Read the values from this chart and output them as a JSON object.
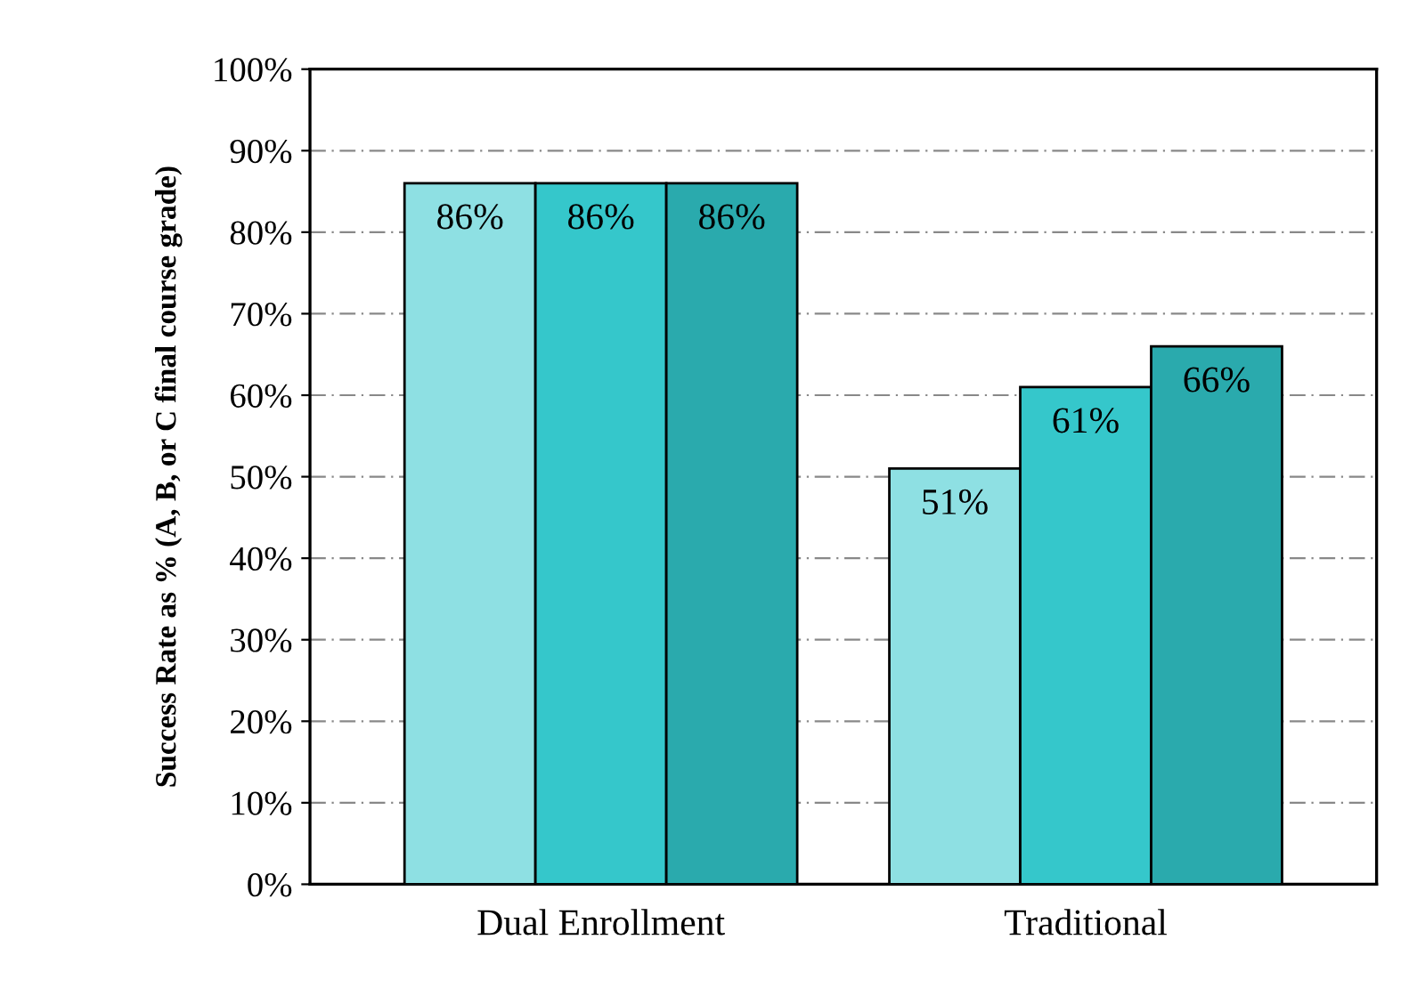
{
  "chart_data": {
    "type": "bar",
    "ylabel": "Success Rate as % (A, B, or C final course grade)",
    "categories": [
      "Dual Enrollment",
      "Traditional"
    ],
    "series": [
      {
        "color": "#8ee0e3",
        "values": [
          86,
          51
        ],
        "value_labels": [
          "86%",
          "51%"
        ]
      },
      {
        "color": "#35c7cb",
        "values": [
          86,
          61
        ],
        "value_labels": [
          "86%",
          "61%"
        ]
      },
      {
        "color": "#2aaaad",
        "values": [
          86,
          66
        ],
        "value_labels": [
          "86%",
          "66%"
        ]
      }
    ],
    "ylim": [
      0,
      100
    ],
    "yticks": [
      {
        "value": 0,
        "label": "0%"
      },
      {
        "value": 10,
        "label": "10%"
      },
      {
        "value": 20,
        "label": "20%"
      },
      {
        "value": 30,
        "label": "30%"
      },
      {
        "value": 40,
        "label": "40%"
      },
      {
        "value": 50,
        "label": "50%"
      },
      {
        "value": 60,
        "label": "60%"
      },
      {
        "value": 70,
        "label": "70%"
      },
      {
        "value": 80,
        "label": "80%"
      },
      {
        "value": 90,
        "label": "90%"
      },
      {
        "value": 100,
        "label": "100%"
      }
    ],
    "grid": "y",
    "legend": false
  }
}
